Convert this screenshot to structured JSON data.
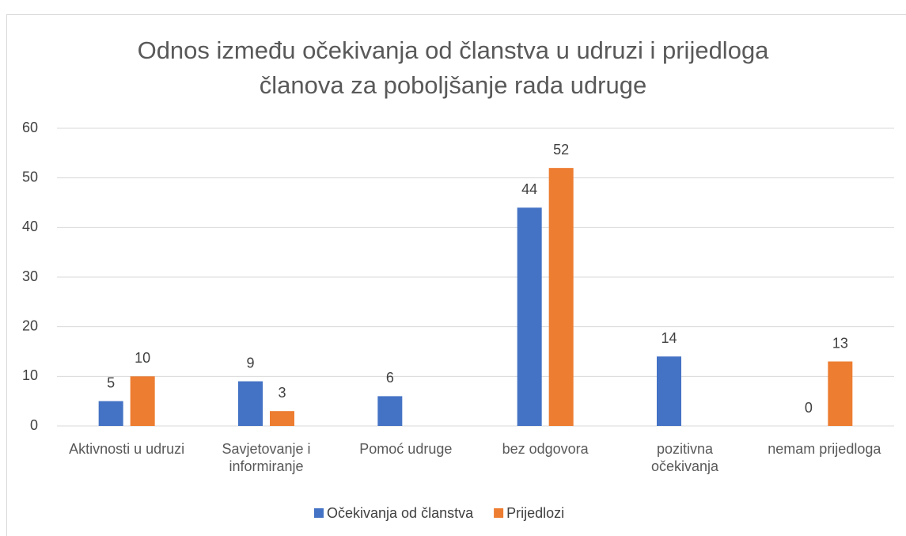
{
  "chart_data": {
    "type": "bar",
    "title": "Odnos između očekivanja od članstva u udruzi i prijedloga članova za poboljšanje rada udruge",
    "categories": [
      "Aktivnosti u udruzi",
      "Savjetovanje i informiranje",
      "Pomoć udruge",
      "bez odgovora",
      "pozitivna očekivanja",
      "nemam prijedloga"
    ],
    "series": [
      {
        "name": "Očekivanja od članstva",
        "color": "#4472c4",
        "values": [
          5,
          9,
          6,
          44,
          14,
          0
        ]
      },
      {
        "name": "Prijedlozi",
        "color": "#ed7d31",
        "values": [
          10,
          3,
          null,
          52,
          null,
          13
        ]
      }
    ],
    "ylim": [
      0,
      60
    ],
    "yticks": [
      0,
      10,
      20,
      30,
      40,
      50,
      60
    ],
    "grid": true,
    "legend": "bottom"
  }
}
